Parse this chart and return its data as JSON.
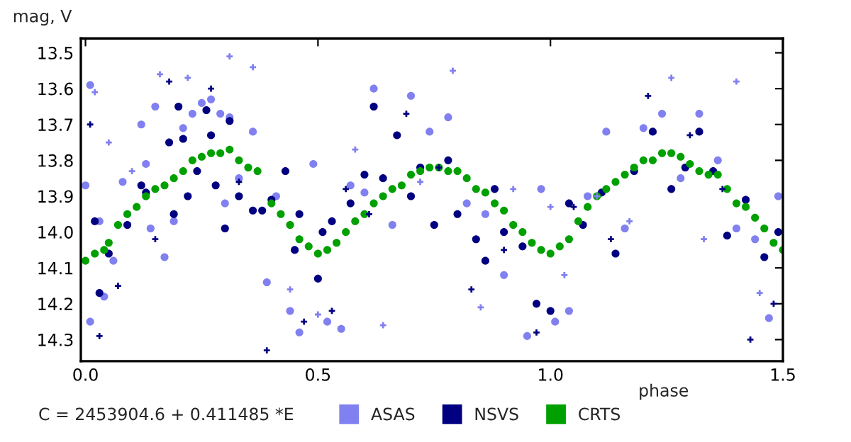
{
  "chart_data": {
    "type": "scatter",
    "ylabel": "mag, V",
    "xlabel": "phase",
    "annotations": [
      "C = 2453904.6 + 0.411485 *E"
    ],
    "xlim": [
      -0.01,
      1.5
    ],
    "ylim": [
      14.36,
      13.46
    ],
    "xticks": [
      {
        "value": 0,
        "label": "0.0"
      },
      {
        "value": 0.5,
        "label": "0.5"
      },
      {
        "value": 1.0,
        "label": "1.0"
      },
      {
        "value": 1.5,
        "label": "1.5"
      }
    ],
    "yticks": [
      {
        "value": 13.5,
        "label": "13.5"
      },
      {
        "value": 13.6,
        "label": "13.6"
      },
      {
        "value": 13.7,
        "label": "13.7"
      },
      {
        "value": 13.8,
        "label": "13.8"
      },
      {
        "value": 13.9,
        "label": "13.9"
      },
      {
        "value": 14.0,
        "label": "14.0"
      },
      {
        "value": 14.1,
        "label": "14.1"
      },
      {
        "value": 14.2,
        "label": "14.2"
      },
      {
        "value": 14.3,
        "label": "14.3"
      }
    ],
    "grid": false,
    "legend": "bottom",
    "series": [
      {
        "name": "ASAS",
        "color": "#8080f0",
        "marker": "circle",
        "x": [
          0.0,
          0.01,
          0.01,
          0.03,
          0.04,
          0.06,
          0.08,
          0.12,
          0.13,
          0.14,
          0.15,
          0.17,
          0.19,
          0.21,
          0.23,
          0.25,
          0.27,
          0.29,
          0.3,
          0.31,
          0.33,
          0.36,
          0.39,
          0.41,
          0.44,
          0.46,
          0.49,
          0.52,
          0.55,
          0.57,
          0.6,
          0.62,
          0.66,
          0.7,
          0.74,
          0.78,
          0.82,
          0.86,
          0.9,
          0.95,
          0.98,
          1.01,
          1.04,
          1.08,
          1.12,
          1.16,
          1.2,
          1.24,
          1.28,
          1.32,
          1.36,
          1.4,
          1.44,
          1.47,
          1.49
        ],
        "values": [
          13.87,
          13.59,
          14.25,
          13.97,
          14.18,
          14.08,
          13.86,
          13.7,
          13.81,
          13.99,
          13.65,
          14.07,
          13.97,
          13.71,
          13.67,
          13.64,
          13.63,
          13.67,
          13.92,
          13.68,
          13.85,
          13.72,
          14.14,
          13.9,
          14.22,
          14.28,
          13.81,
          14.25,
          14.27,
          13.87,
          13.89,
          13.6,
          13.98,
          13.62,
          13.72,
          13.68,
          13.92,
          13.95,
          14.12,
          14.29,
          13.88,
          14.25,
          14.22,
          13.9,
          13.72,
          13.99,
          13.71,
          13.67,
          13.85,
          13.67,
          13.8,
          13.99,
          14.02,
          14.24,
          13.9
        ]
      },
      {
        "name": "NSVS",
        "color": "#000080",
        "marker": "circle",
        "x": [
          0.02,
          0.03,
          0.05,
          0.09,
          0.12,
          0.13,
          0.18,
          0.19,
          0.2,
          0.21,
          0.22,
          0.24,
          0.26,
          0.27,
          0.28,
          0.3,
          0.31,
          0.33,
          0.36,
          0.38,
          0.4,
          0.43,
          0.45,
          0.46,
          0.5,
          0.51,
          0.53,
          0.57,
          0.6,
          0.62,
          0.64,
          0.67,
          0.7,
          0.72,
          0.75,
          0.78,
          0.8,
          0.84,
          0.86,
          0.88,
          0.9,
          0.94,
          0.97,
          1.0,
          1.04,
          1.07,
          1.11,
          1.14,
          1.18,
          1.22,
          1.26,
          1.29,
          1.32,
          1.35,
          1.38,
          1.42,
          1.46,
          1.49
        ],
        "values": [
          13.97,
          14.17,
          14.06,
          13.98,
          13.87,
          13.89,
          13.75,
          13.95,
          13.65,
          13.74,
          13.9,
          13.83,
          13.66,
          13.73,
          13.87,
          13.99,
          13.69,
          13.9,
          13.94,
          13.94,
          13.91,
          13.83,
          14.05,
          13.95,
          14.13,
          14.0,
          13.97,
          13.92,
          13.84,
          13.65,
          13.85,
          13.73,
          13.9,
          13.82,
          13.98,
          13.8,
          13.95,
          14.02,
          14.08,
          13.88,
          14.0,
          14.04,
          14.2,
          14.22,
          13.92,
          13.98,
          13.89,
          14.06,
          13.83,
          13.72,
          13.88,
          13.82,
          13.72,
          13.83,
          14.01,
          13.91,
          14.07,
          14.0
        ]
      },
      {
        "name": "CRTS",
        "color": "#00a000",
        "marker": "circle",
        "x": [
          0.0,
          0.02,
          0.04,
          0.05,
          0.07,
          0.09,
          0.11,
          0.13,
          0.15,
          0.17,
          0.19,
          0.21,
          0.23,
          0.25,
          0.27,
          0.29,
          0.31,
          0.33,
          0.35,
          0.37,
          0.4,
          0.42,
          0.44,
          0.46,
          0.48,
          0.5,
          0.52,
          0.54,
          0.56,
          0.58,
          0.6,
          0.62,
          0.64,
          0.66,
          0.68,
          0.7,
          0.72,
          0.74,
          0.76,
          0.78,
          0.8,
          0.82,
          0.84,
          0.86,
          0.88,
          0.9,
          0.92,
          0.94,
          0.96,
          0.98,
          1.0,
          1.02,
          1.04,
          1.06,
          1.08,
          1.1,
          1.12,
          1.14,
          1.16,
          1.18,
          1.2,
          1.22,
          1.24,
          1.26,
          1.28,
          1.3,
          1.32,
          1.34,
          1.36,
          1.38,
          1.4,
          1.42,
          1.44,
          1.46,
          1.48,
          1.5
        ],
        "values": [
          14.08,
          14.06,
          14.05,
          14.03,
          13.98,
          13.95,
          13.93,
          13.9,
          13.88,
          13.87,
          13.85,
          13.83,
          13.8,
          13.79,
          13.78,
          13.78,
          13.77,
          13.8,
          13.82,
          13.83,
          13.92,
          13.95,
          13.98,
          14.02,
          14.04,
          14.06,
          14.05,
          14.03,
          14.0,
          13.97,
          13.95,
          13.92,
          13.9,
          13.88,
          13.87,
          13.84,
          13.83,
          13.82,
          13.82,
          13.83,
          13.83,
          13.85,
          13.88,
          13.89,
          13.92,
          13.94,
          13.98,
          14.0,
          14.03,
          14.05,
          14.06,
          14.04,
          14.02,
          13.97,
          13.93,
          13.9,
          13.88,
          13.86,
          13.84,
          13.82,
          13.8,
          13.8,
          13.78,
          13.78,
          13.79,
          13.81,
          13.83,
          13.84,
          13.84,
          13.88,
          13.92,
          13.93,
          13.96,
          13.99,
          14.03,
          14.05
        ]
      },
      {
        "color": "#8080f0",
        "marker": "cross",
        "x": [
          0.02,
          0.05,
          0.1,
          0.16,
          0.22,
          0.31,
          0.36,
          0.44,
          0.5,
          0.58,
          0.64,
          0.72,
          0.79,
          0.85,
          0.92,
          1.0,
          1.03,
          1.1,
          1.17,
          1.26,
          1.33,
          1.4,
          1.45
        ],
        "values": [
          13.61,
          13.75,
          13.83,
          13.56,
          13.57,
          13.51,
          13.54,
          14.16,
          14.23,
          13.77,
          14.26,
          13.86,
          13.55,
          14.21,
          13.88,
          13.93,
          14.12,
          13.9,
          13.97,
          13.57,
          14.02,
          13.58,
          14.17
        ]
      },
      {
        "color": "#000080",
        "marker": "cross",
        "x": [
          0.01,
          0.03,
          0.07,
          0.15,
          0.18,
          0.27,
          0.33,
          0.39,
          0.47,
          0.53,
          0.56,
          0.61,
          0.69,
          0.76,
          0.83,
          0.9,
          0.97,
          1.05,
          1.13,
          1.21,
          1.3,
          1.37,
          1.43,
          1.48
        ],
        "values": [
          13.7,
          14.29,
          14.15,
          14.02,
          13.58,
          13.6,
          13.86,
          14.33,
          14.25,
          14.22,
          13.88,
          13.95,
          13.67,
          13.82,
          14.16,
          14.05,
          14.28,
          13.93,
          14.02,
          13.62,
          13.73,
          13.88,
          14.3,
          14.2
        ]
      }
    ]
  }
}
